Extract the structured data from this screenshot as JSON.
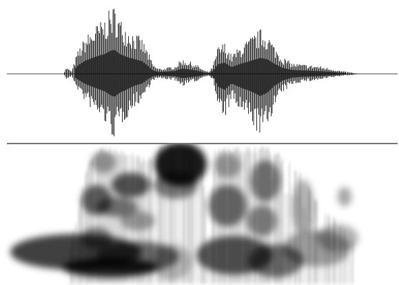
{
  "figure": {
    "kind": "speech waveform and spectrogram",
    "panels": [
      "waveform",
      "spectrogram"
    ]
  },
  "colors": {
    "background": "#ffffff",
    "ink": "#000000",
    "waveform": "#111111",
    "zero_line": "#444444",
    "divider": "#222222"
  }
}
